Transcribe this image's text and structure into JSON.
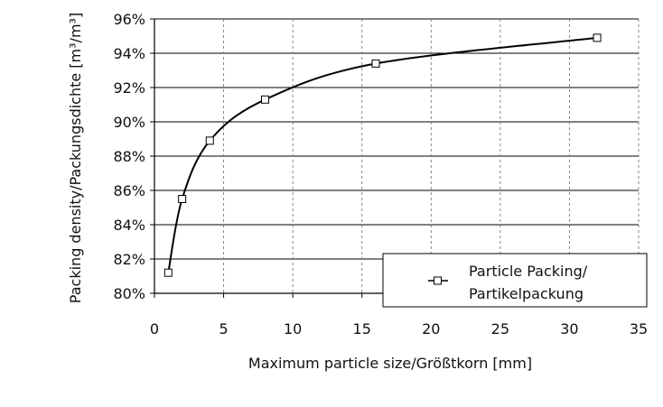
{
  "chart_data": {
    "type": "line",
    "title": "",
    "xlabel": "Maximum particle size/Größtkorn [mm]",
    "ylabel": "Packing density/Packungsdichte [m³/m³]",
    "xlim": [
      0,
      35
    ],
    "ylim": [
      80,
      96
    ],
    "x_ticks": [
      0,
      5,
      10,
      15,
      20,
      25,
      30,
      35
    ],
    "x_tick_labels": [
      "0",
      "5",
      "10",
      "15",
      "20",
      "25",
      "30",
      "35"
    ],
    "y_ticks": [
      80,
      82,
      84,
      86,
      88,
      90,
      92,
      94,
      96
    ],
    "y_tick_labels": [
      "80%",
      "82%",
      "84%",
      "86%",
      "88%",
      "90%",
      "92%",
      "94%",
      "96%"
    ],
    "grid": {
      "horizontal": "solid",
      "vertical": "dashed"
    },
    "legend": {
      "position": "bottom-right",
      "marker": "square",
      "lines": [
        "Particle Packing/",
        "Partikelpackung"
      ]
    },
    "series": [
      {
        "name": "Particle Packing/Partikelpackung",
        "marker": "square",
        "smooth": true,
        "color": "#000000",
        "x": [
          1,
          2,
          4,
          8,
          16,
          32
        ],
        "y": [
          81.2,
          85.5,
          88.9,
          91.3,
          93.4,
          94.9
        ]
      }
    ]
  }
}
